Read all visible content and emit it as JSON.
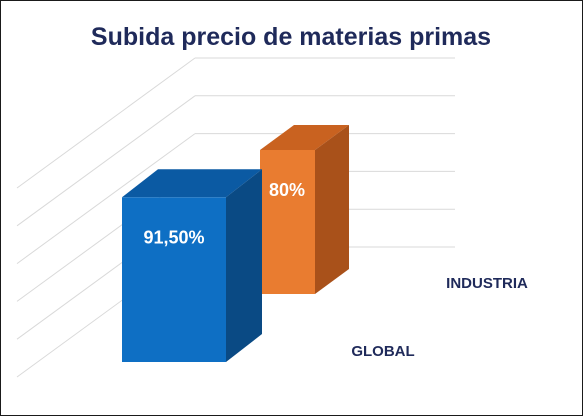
{
  "chart_data": {
    "type": "bar",
    "title": "Subida precio de materias primas",
    "categories": [
      "GLOBAL",
      "INDUSTRIA"
    ],
    "values": [
      91.5,
      80
    ],
    "data_labels": [
      "91,50%",
      "80%"
    ],
    "unit": "%",
    "style": "3d-column",
    "grid": true,
    "legend": "none"
  },
  "colors": {
    "title": "#1f2a5a",
    "category_text": "#1f2a5a",
    "grid": "#d9d9d9",
    "series": [
      {
        "front": "#0e6fc4",
        "top": "#0b5aa3",
        "side": "#0a4a84"
      },
      {
        "front": "#e97c30",
        "top": "#c96220",
        "side": "#a9511a"
      }
    ]
  }
}
